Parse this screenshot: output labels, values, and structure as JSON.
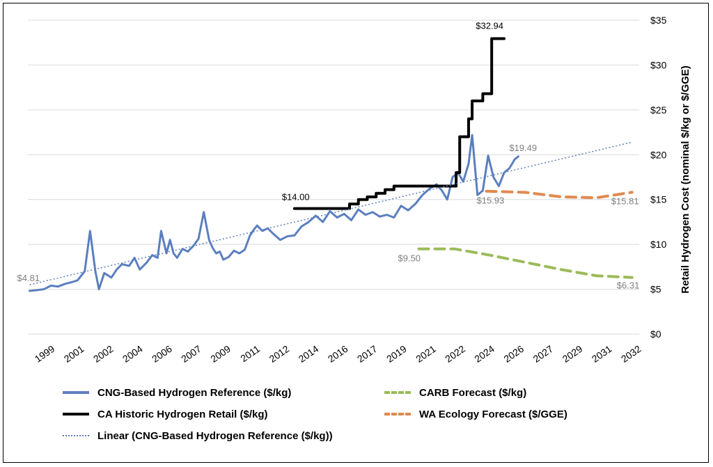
{
  "chart_data": {
    "type": "line",
    "ylabel": "Retail Hydrogen Cost (nominal $/kg or $/GGE)",
    "ylim": [
      0,
      35
    ],
    "y_ticks": [
      "$0",
      "$5",
      "$10",
      "$15",
      "$20",
      "$25",
      "$30",
      "$35"
    ],
    "y_tick_values": [
      0,
      5,
      10,
      15,
      20,
      25,
      30,
      35
    ],
    "x_ticks": [
      "1999",
      "2001",
      "2002",
      "2004",
      "2006",
      "2007",
      "2009",
      "2011",
      "2012",
      "2014",
      "2016",
      "2017",
      "2019",
      "2021",
      "2022",
      "2024",
      "2026",
      "2027",
      "2029",
      "2031",
      "2032"
    ],
    "x_tick_values": [
      1999,
      2000.65,
      2002.3,
      2003.95,
      2005.6,
      2007.25,
      2008.9,
      2010.55,
      2012.2,
      2013.85,
      2015.5,
      2017.15,
      2018.8,
      2020.45,
      2022.1,
      2023.75,
      2025.4,
      2027.05,
      2028.7,
      2030.35,
      2032
    ],
    "xlim": [
      1998.0,
      2032.4
    ],
    "grid": "horizontal",
    "legend_position": "bottom",
    "series": [
      {
        "name": "CNG-Based Hydrogen Reference ($/kg)",
        "color": "#5b7fbe",
        "style": "solid",
        "x": [
          1998.1,
          1998.5,
          1998.9,
          1999.3,
          1999.7,
          2000.1,
          2000.5,
          2000.8,
          2001.0,
          2001.2,
          2001.5,
          2001.8,
          2002.0,
          2002.3,
          2002.7,
          2003.0,
          2003.3,
          2003.7,
          2004.0,
          2004.3,
          2004.7,
          2005.0,
          2005.3,
          2005.5,
          2005.8,
          2006.0,
          2006.2,
          2006.4,
          2006.7,
          2007.0,
          2007.3,
          2007.6,
          2007.9,
          2008.2,
          2008.4,
          2008.6,
          2008.8,
          2009.0,
          2009.3,
          2009.6,
          2009.9,
          2010.2,
          2010.5,
          2010.7,
          2010.9,
          2011.2,
          2011.5,
          2011.8,
          2012.2,
          2012.6,
          2013.0,
          2013.4,
          2013.8,
          2014.2,
          2014.6,
          2015.0,
          2015.4,
          2015.8,
          2016.2,
          2016.6,
          2017.0,
          2017.4,
          2017.8,
          2018.2,
          2018.6,
          2019.0,
          2019.4,
          2019.8,
          2020.2,
          2020.6,
          2021.0,
          2021.3,
          2021.6,
          2021.9,
          2022.2,
          2022.5,
          2022.8,
          2023.0,
          2023.3,
          2023.6,
          2023.9,
          2024.2,
          2024.5,
          2024.8,
          2025.1,
          2025.4,
          2025.6
        ],
        "values": [
          4.81,
          4.9,
          5.0,
          5.4,
          5.3,
          5.6,
          5.8,
          6.0,
          6.5,
          7.0,
          11.5,
          7.0,
          5.0,
          6.8,
          6.3,
          7.2,
          7.8,
          7.6,
          8.5,
          7.2,
          8.0,
          8.8,
          8.5,
          11.5,
          9.0,
          10.5,
          9.0,
          8.5,
          9.5,
          9.2,
          9.8,
          10.6,
          13.6,
          10.5,
          9.6,
          9.0,
          9.2,
          8.3,
          8.6,
          9.3,
          9.0,
          9.4,
          11.0,
          11.6,
          12.1,
          11.5,
          11.8,
          11.2,
          10.5,
          10.9,
          11.0,
          12.0,
          12.5,
          13.2,
          12.5,
          13.7,
          13.0,
          13.4,
          12.7,
          13.9,
          13.3,
          13.6,
          13.1,
          13.3,
          13.0,
          14.3,
          13.8,
          14.5,
          15.5,
          16.2,
          16.7,
          16.0,
          15.0,
          17.5,
          18.0,
          17.0,
          19.0,
          22.2,
          15.5,
          16.0,
          19.9,
          17.5,
          16.5,
          18.0,
          18.5,
          19.49,
          19.8
        ]
      },
      {
        "name": "CA Historic Hydrogen Retail ($/kg)",
        "color": "#000000",
        "style": "step",
        "x": [
          2013.0,
          2015.6,
          2016.1,
          2016.6,
          2017.1,
          2017.6,
          2018.1,
          2018.6,
          2019.1,
          2019.6,
          2020.1,
          2020.6,
          2021.1,
          2021.6,
          2022.1,
          2022.3,
          2022.8,
          2023.0,
          2023.6,
          2024.1,
          2024.3,
          2024.8
        ],
        "values": [
          14.0,
          14.0,
          14.5,
          15.0,
          15.3,
          15.7,
          16.1,
          16.5,
          16.5,
          16.5,
          16.5,
          16.5,
          16.5,
          16.5,
          18.0,
          22.0,
          24.0,
          26.0,
          26.8,
          32.94,
          32.94,
          32.94
        ]
      },
      {
        "name": "CARB Forecast ($/kg)",
        "color": "#9bbb59",
        "style": "dashed",
        "x": [
          2020.0,
          2022.0,
          2024.0,
          2026.0,
          2028.0,
          2030.0,
          2032.0
        ],
        "values": [
          9.5,
          9.5,
          8.8,
          8.0,
          7.2,
          6.5,
          6.31
        ]
      },
      {
        "name": "WA Ecology Forecast ($/GGE)",
        "color": "#e08a4e",
        "style": "dashed",
        "x": [
          2023.8,
          2026.0,
          2028.0,
          2030.0,
          2032.0
        ],
        "values": [
          15.93,
          15.8,
          15.3,
          15.2,
          15.81
        ]
      },
      {
        "name": "Linear (CNG-Based Hydrogen Reference ($/kg))",
        "color": "#5b7fbe",
        "style": "dotted",
        "x": [
          1998.1,
          2032.0
        ],
        "values": [
          5.5,
          21.4
        ]
      }
    ],
    "annotations": [
      {
        "text": "$4.81",
        "x": 1998.1,
        "y": 4.81,
        "color": "#7f7f7f"
      },
      {
        "text": "$14.00",
        "x": 2013.0,
        "y": 14.0,
        "color": "#000000"
      },
      {
        "text": "$32.94",
        "x": 2024.3,
        "y": 32.94,
        "color": "#000000"
      },
      {
        "text": "$19.49",
        "x": 2025.4,
        "y": 19.49,
        "color": "#7f7f7f"
      },
      {
        "text": "$15.93",
        "x": 2023.8,
        "y": 15.93,
        "color": "#7f7f7f"
      },
      {
        "text": "$15.81",
        "x": 2032.0,
        "y": 15.81,
        "color": "#7f7f7f"
      },
      {
        "text": "$9.50",
        "x": 2020.0,
        "y": 9.5,
        "color": "#7f7f7f"
      },
      {
        "text": "$6.31",
        "x": 2032.0,
        "y": 6.31,
        "color": "#7f7f7f"
      }
    ]
  }
}
